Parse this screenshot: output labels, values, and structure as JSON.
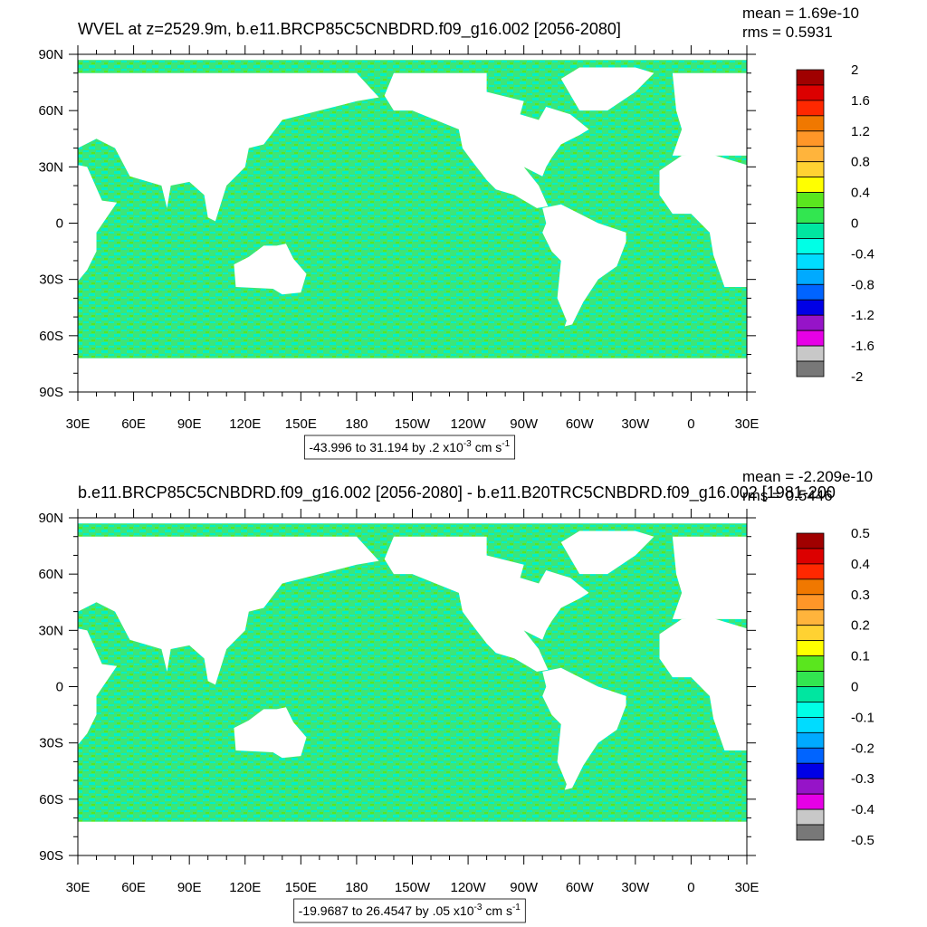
{
  "panels": [
    {
      "title": "WVEL at z=2529.9m, b.e11.BRCP85C5CNBDRD.f09_g16.002 [2056-2080]",
      "mean": "mean = 1.69e-10",
      "rms": "rms = 0.5931",
      "lat_labels": [
        "90N",
        "60N",
        "30N",
        "0",
        "30S",
        "60S",
        "90S"
      ],
      "lon_labels": [
        "30E",
        "60E",
        "90E",
        "120E",
        "150E",
        "180",
        "150W",
        "120W",
        "90W",
        "60W",
        "30W",
        "0",
        "30E"
      ],
      "colorbar": {
        "labels": [
          "2",
          "1.6",
          "1.2",
          "0.8",
          "0.4",
          "0",
          "-0.4",
          "-0.8",
          "-1.2",
          "-1.6",
          "-2"
        ],
        "colors": [
          "#A00000",
          "#DC0000",
          "#FF2800",
          "#F07800",
          "#FF9628",
          "#FFB43C",
          "#FFD232",
          "#FFFF00",
          "#5AE61E",
          "#32E650",
          "#00E6A0",
          "#00FFE6",
          "#00DCFF",
          "#00AAFF",
          "#0064FF",
          "#0000E6",
          "#9614C8",
          "#E600E6",
          "#C8C8C8",
          "#787878"
        ]
      },
      "info": {
        "text": "-43.996 to 31.194 by .2 x10",
        "exp": "-3",
        "unit": "cm s",
        "unit_exp": "-1"
      }
    },
    {
      "title": "b.e11.BRCP85C5CNBDRD.f09_g16.002 [2056-2080] - b.e11.B20TRC5CNBDRD.f09_g16.002 [1981-200",
      "mean": "mean = -2.209e-10",
      "rms": "rms = 0.5446",
      "lat_labels": [
        "90N",
        "60N",
        "30N",
        "0",
        "30S",
        "60S",
        "90S"
      ],
      "lon_labels": [
        "30E",
        "60E",
        "90E",
        "120E",
        "150E",
        "180",
        "150W",
        "120W",
        "90W",
        "60W",
        "30W",
        "0",
        "30E"
      ],
      "colorbar": {
        "labels": [
          "0.5",
          "0.4",
          "0.3",
          "0.2",
          "0.1",
          "0",
          "-0.1",
          "-0.2",
          "-0.3",
          "-0.4",
          "-0.5"
        ],
        "colors": [
          "#A00000",
          "#DC0000",
          "#FF2800",
          "#F07800",
          "#FF9628",
          "#FFB43C",
          "#FFD232",
          "#FFFF00",
          "#5AE61E",
          "#32E650",
          "#00E6A0",
          "#00FFE6",
          "#00DCFF",
          "#00AAFF",
          "#0064FF",
          "#0000E6",
          "#9614C8",
          "#E600E6",
          "#C8C8C8",
          "#787878"
        ]
      },
      "info": {
        "text": "-19.9687 to 26.4547 by .05 x10",
        "exp": "-3",
        "unit": "cm s",
        "unit_exp": "-1"
      }
    }
  ]
}
